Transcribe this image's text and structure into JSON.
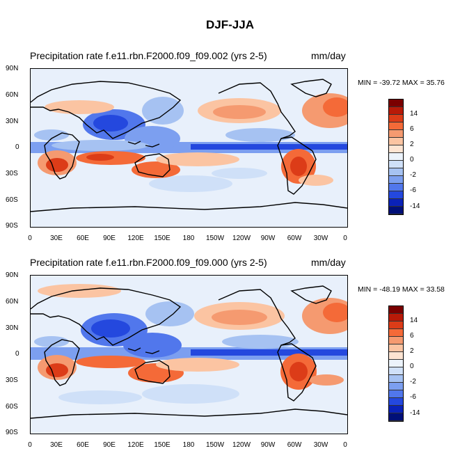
{
  "figure": {
    "title": "DJF-JJA",
    "panels": [
      {
        "title": "Precipitation rate f.e11.rbn.F2000.f09_f09.002 (yrs 2-5)",
        "units": "mm/day",
        "stats": "MIN = -39.72 MAX =  35.76"
      },
      {
        "title": "Precipitation rate f.e11.rbn.F2000.f09_f09.000 (yrs 2-5)",
        "units": "mm/day",
        "stats": "MIN = -48.19 MAX =  33.58"
      }
    ],
    "lat_labels": [
      "90N",
      "60N",
      "30N",
      "0",
      "30S",
      "60S",
      "90S"
    ],
    "lon_labels": [
      "0",
      "30E",
      "60E",
      "90E",
      "120E",
      "150E",
      "180",
      "150W",
      "120W",
      "90W",
      "60W",
      "30W",
      "0"
    ],
    "colorbar": {
      "labels": [
        "14",
        "6",
        "2",
        "0",
        "-2",
        "-6",
        "-14"
      ],
      "colors": [
        "#7a0000",
        "#b81a08",
        "#dc3c18",
        "#f46a38",
        "#f59a70",
        "#fbc4a2",
        "#fde4d2",
        "#ecf3fb",
        "#cfe0f8",
        "#a6c2f2",
        "#7c9ff0",
        "#5177ec",
        "#2448de",
        "#0a22b8",
        "#001078"
      ]
    }
  }
}
